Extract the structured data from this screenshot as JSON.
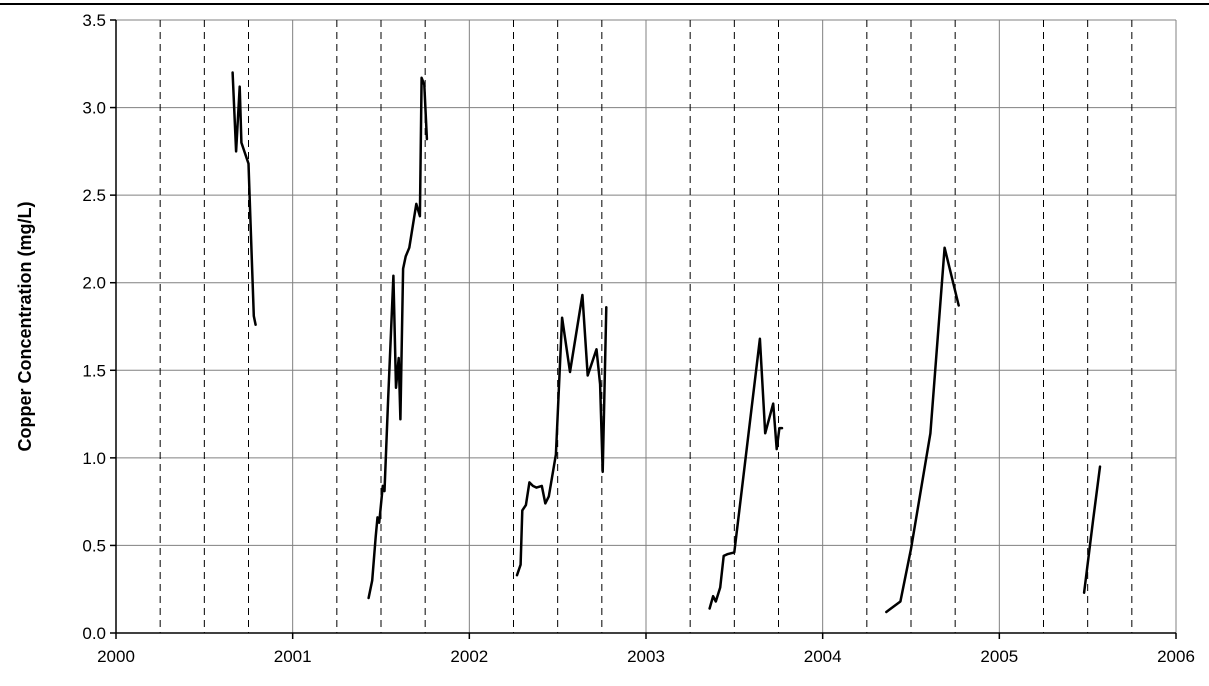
{
  "chart_data": {
    "type": "line",
    "title": "",
    "xlabel": "",
    "ylabel": "Copper Concentration (mg/L)",
    "xlim": [
      2000,
      2006
    ],
    "ylim": [
      0,
      3.5
    ],
    "x_ticks": [
      2000,
      2001,
      2002,
      2003,
      2004,
      2005,
      2006
    ],
    "x_tick_labels": [
      "2000",
      "2001",
      "2002",
      "2003",
      "2004",
      "2005",
      "2006"
    ],
    "y_ticks": [
      0,
      0.5,
      1,
      1.5,
      2,
      2.5,
      3,
      3.5
    ],
    "y_tick_labels": [
      "0.0",
      "0.5",
      "1.0",
      "1.5",
      "2.0",
      "2.5",
      "3.0",
      "3.5"
    ],
    "grid": {
      "y_major": true,
      "x_major_solid": true,
      "x_quarter_dashed": true
    },
    "legend": "none",
    "colors": {
      "line": "#000000",
      "grid": "#808080",
      "axis": "#000000",
      "background": "#ffffff"
    },
    "series": [
      {
        "segments": [
          {
            "x": [
              2000.66,
              2000.68,
              2000.7,
              2000.71,
              2000.75,
              2000.76,
              2000.78,
              2000.79
            ],
            "y": [
              3.2,
              2.75,
              3.12,
              2.8,
              2.68,
              2.38,
              1.81,
              1.76
            ]
          },
          {
            "x": [
              2001.43,
              2001.45,
              2001.47,
              2001.48,
              2001.49,
              2001.51,
              2001.52,
              2001.54,
              2001.57,
              2001.585,
              2001.6,
              2001.61,
              2001.625,
              2001.64,
              2001.66,
              2001.7,
              2001.72,
              2001.73,
              2001.745,
              2001.76
            ],
            "y": [
              0.2,
              0.3,
              0.55,
              0.66,
              0.63,
              0.84,
              0.81,
              1.33,
              2.04,
              1.4,
              1.57,
              1.22,
              2.08,
              2.15,
              2.2,
              2.45,
              2.38,
              3.17,
              3.13,
              2.82
            ]
          },
          {
            "x": [
              2002.27,
              2002.29,
              2002.3,
              2002.32,
              2002.34,
              2002.36,
              2002.38,
              2002.41,
              2002.43,
              2002.45,
              2002.49,
              2002.525,
              2002.57,
              2002.64,
              2002.67,
              2002.72,
              2002.74,
              2002.755,
              2002.775
            ],
            "y": [
              0.33,
              0.39,
              0.7,
              0.73,
              0.86,
              0.84,
              0.83,
              0.84,
              0.74,
              0.78,
              1.02,
              1.8,
              1.49,
              1.93,
              1.47,
              1.62,
              1.42,
              0.92,
              1.86
            ]
          },
          {
            "x": [
              2003.36,
              2003.38,
              2003.395,
              2003.42,
              2003.44,
              2003.46,
              2003.5,
              2003.645,
              2003.675,
              2003.72,
              2003.74,
              2003.755,
              2003.77
            ],
            "y": [
              0.14,
              0.21,
              0.18,
              0.26,
              0.44,
              0.45,
              0.46,
              1.68,
              1.14,
              1.31,
              1.05,
              1.17,
              1.17
            ]
          },
          {
            "x": [
              2004.36,
              2004.44,
              2004.5,
              2004.61,
              2004.69,
              2004.77
            ],
            "y": [
              0.12,
              0.18,
              0.48,
              1.14,
              2.2,
              1.87
            ]
          },
          {
            "x": [
              2005.48,
              2005.53,
              2005.57
            ],
            "y": [
              0.23,
              0.64,
              0.95
            ]
          }
        ]
      }
    ]
  }
}
